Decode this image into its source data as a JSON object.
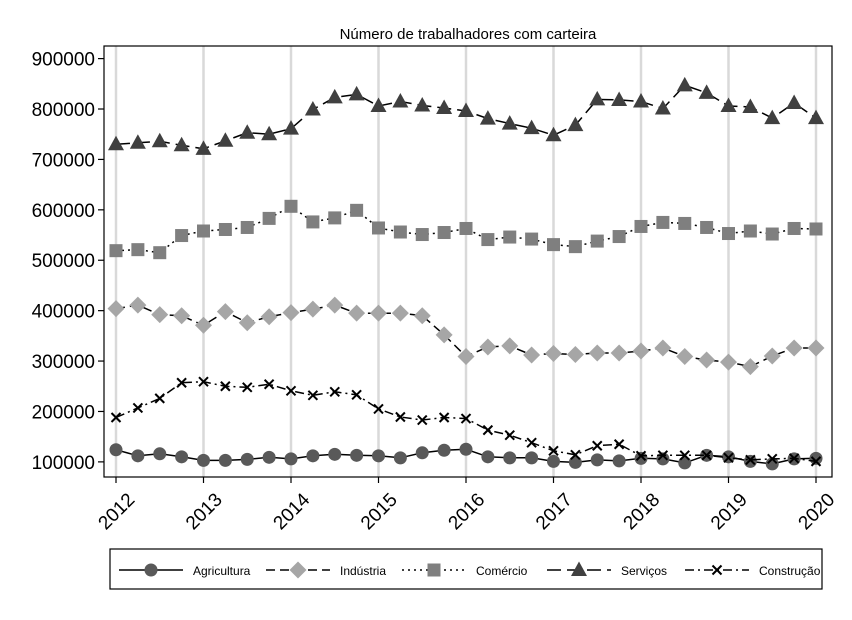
{
  "chart_data": {
    "type": "line",
    "title": "Número de trabalhadores com carteira",
    "xlabel": "",
    "ylabel": "",
    "x_ticks": [
      "2012",
      "2013",
      "2014",
      "2015",
      "2016",
      "2017",
      "2018",
      "2019",
      "2020"
    ],
    "y_ticks": [
      "100000",
      "200000",
      "300000",
      "400000",
      "500000",
      "600000",
      "700000",
      "800000",
      "900000"
    ],
    "xlim": [
      2012,
      2020
    ],
    "ylim": [
      70000,
      925000
    ],
    "grid": "vertical",
    "legend_position": "bottom",
    "x": [
      2012.0,
      2012.25,
      2012.5,
      2012.75,
      2013.0,
      2013.25,
      2013.5,
      2013.75,
      2014.0,
      2014.25,
      2014.5,
      2014.75,
      2015.0,
      2015.25,
      2015.5,
      2015.75,
      2016.0,
      2016.25,
      2016.5,
      2016.75,
      2017.0,
      2017.25,
      2017.5,
      2017.75,
      2018.0,
      2018.25,
      2018.5,
      2018.75,
      2019.0,
      2019.25,
      2019.5,
      2019.75,
      2020.0
    ],
    "series": [
      {
        "name": "Agricultura",
        "marker": "circle",
        "line": "solid",
        "color": "#595959",
        "values": [
          124000,
          112000,
          116000,
          110000,
          103000,
          103000,
          105000,
          109000,
          106000,
          112000,
          115000,
          113000,
          112000,
          108000,
          118000,
          123000,
          125000,
          110000,
          108000,
          108000,
          101000,
          99000,
          104000,
          102000,
          107000,
          106000,
          98000,
          113000,
          110000,
          101000,
          96000,
          106000,
          107000
        ]
      },
      {
        "name": "Indústria",
        "marker": "diamond",
        "line": "dashed",
        "color": "#a6a6a6",
        "values": [
          404000,
          411000,
          392000,
          390000,
          371000,
          398000,
          376000,
          388000,
          396000,
          403000,
          411000,
          395000,
          395000,
          395000,
          390000,
          352000,
          309000,
          328000,
          330000,
          312000,
          315000,
          313000,
          316000,
          316000,
          320000,
          326000,
          309000,
          302000,
          298000,
          289000,
          310000,
          326000,
          326000
        ]
      },
      {
        "name": "Comércio",
        "marker": "square",
        "line": "dotted",
        "color": "#7f7f7f",
        "values": [
          519000,
          521000,
          515000,
          549000,
          558000,
          561000,
          565000,
          583000,
          607000,
          576000,
          584000,
          599000,
          564000,
          556000,
          551000,
          555000,
          563000,
          541000,
          546000,
          542000,
          531000,
          527000,
          538000,
          547000,
          567000,
          575000,
          573000,
          565000,
          553000,
          558000,
          552000,
          563000,
          562000
        ]
      },
      {
        "name": "Serviços",
        "marker": "triangle",
        "line": "longdash",
        "color": "#404040",
        "values": [
          730000,
          733000,
          736000,
          728000,
          721000,
          737000,
          753000,
          750000,
          761000,
          799000,
          823000,
          829000,
          806000,
          815000,
          807000,
          802000,
          796000,
          781000,
          771000,
          762000,
          748000,
          768000,
          819000,
          818000,
          815000,
          801000,
          847000,
          832000,
          806000,
          804000,
          782000,
          812000,
          782000
        ]
      },
      {
        "name": "Construção",
        "marker": "x",
        "line": "dashdot",
        "color": "#000000",
        "values": [
          188000,
          207000,
          226000,
          257000,
          259000,
          250000,
          248000,
          254000,
          241000,
          232000,
          239000,
          233000,
          205000,
          189000,
          183000,
          188000,
          186000,
          163000,
          153000,
          138000,
          122000,
          114000,
          132000,
          135000,
          112000,
          113000,
          113000,
          113000,
          108000,
          104000,
          106000,
          107000,
          101000
        ]
      }
    ]
  }
}
